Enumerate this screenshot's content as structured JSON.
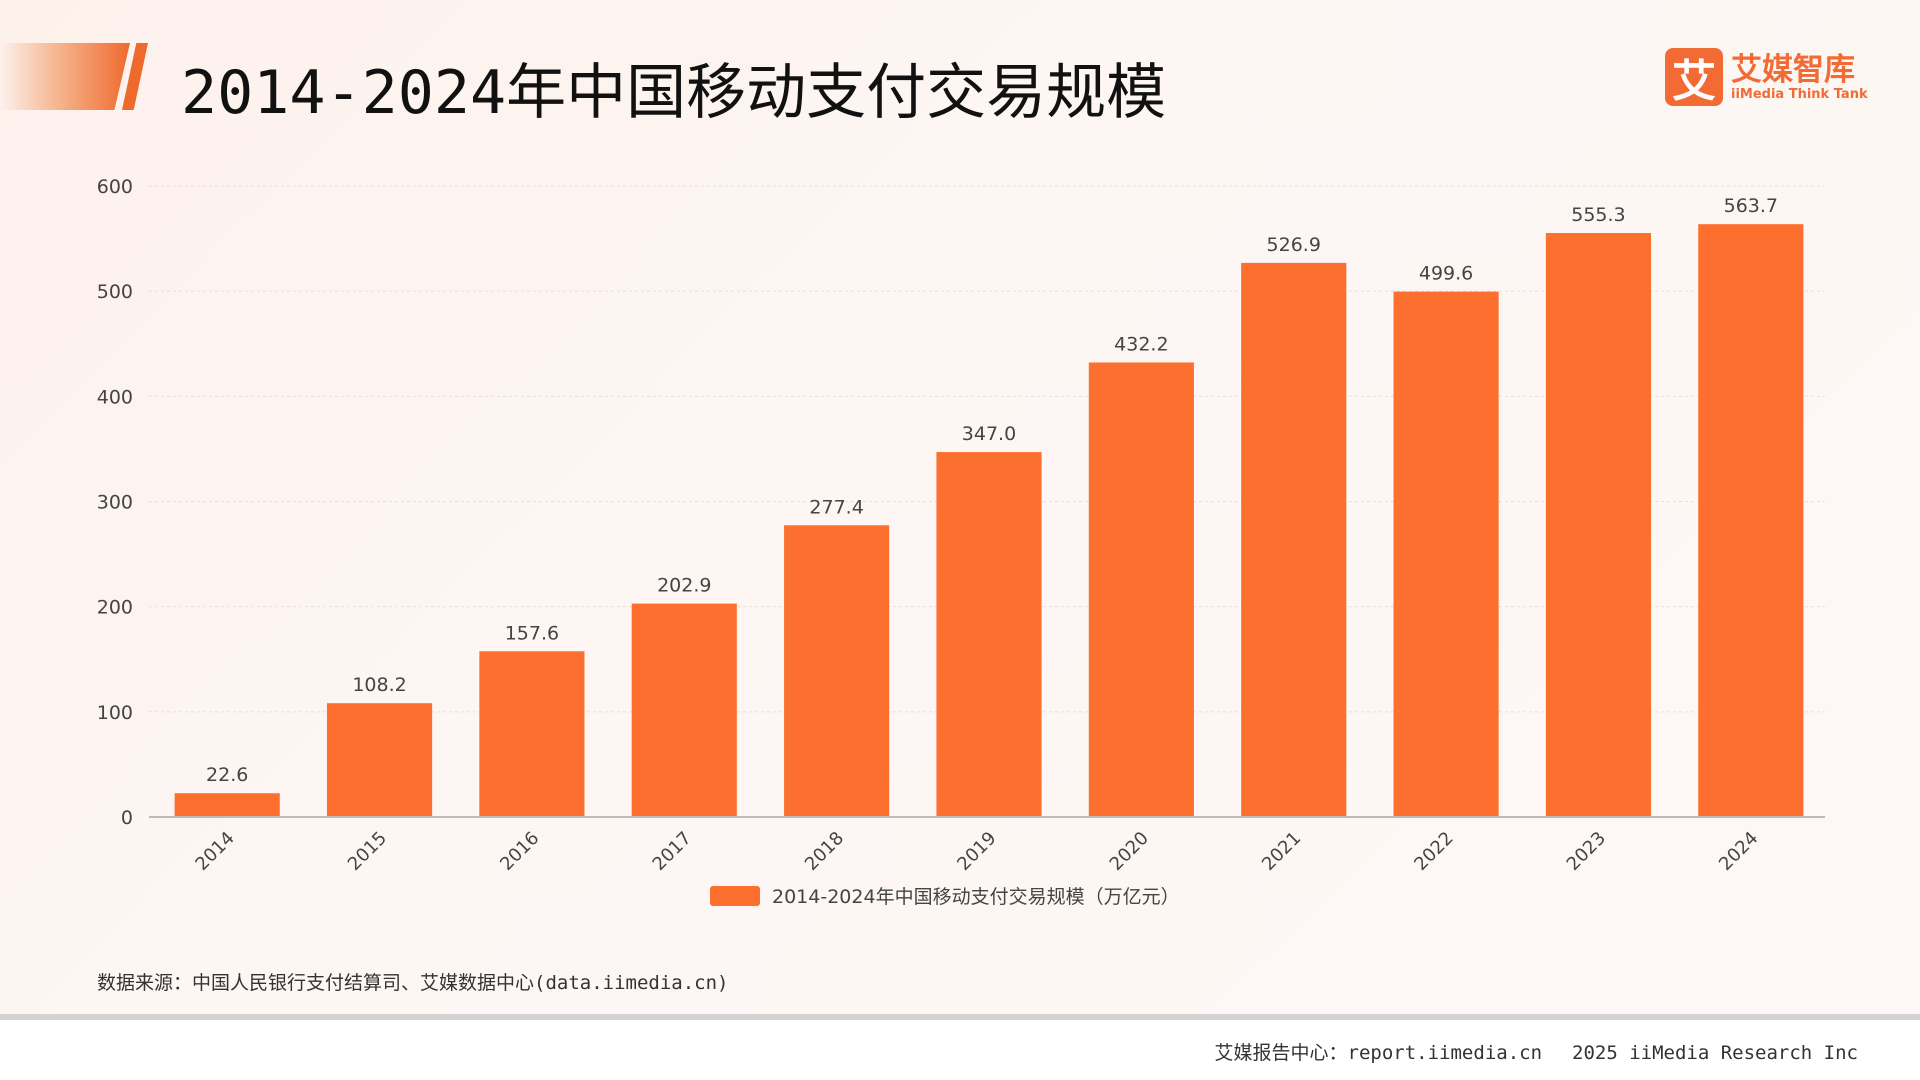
{
  "header": {
    "title": "2014-2024年中国移动支付交易规模"
  },
  "logo": {
    "mark": "艾",
    "cn": "艾媒智库",
    "en": "iiMedia Think Tank"
  },
  "chart_data": {
    "type": "bar",
    "title": "",
    "categories": [
      "2014",
      "2015",
      "2016",
      "2017",
      "2018",
      "2019",
      "2020",
      "2021",
      "2022",
      "2023",
      "2024"
    ],
    "series": [
      {
        "name": "2014-2024年中国移动支付交易规模（万亿元）",
        "values": [
          22.6,
          108.2,
          157.6,
          202.9,
          277.4,
          347.0,
          432.2,
          526.9,
          499.6,
          555.3,
          563.7
        ],
        "labels": [
          "22.6",
          "108.2",
          "157.6",
          "202.9",
          "277.4",
          "347.0",
          "432.2",
          "526.9",
          "499.6",
          "555.3",
          "563.7"
        ]
      }
    ],
    "ylim": [
      0,
      600
    ],
    "yticks": [
      0,
      100,
      200,
      300,
      400,
      500,
      600
    ],
    "grid": true,
    "legend": "bottom",
    "bar_color": "#fd6f2f"
  },
  "source": "数据来源：中国人民银行支付结算司、艾媒数据中心(data.iimedia.cn)",
  "footer": {
    "left": "艾媒报告中心：report.iimedia.cn",
    "right": "2025 iiMedia Research Inc"
  }
}
